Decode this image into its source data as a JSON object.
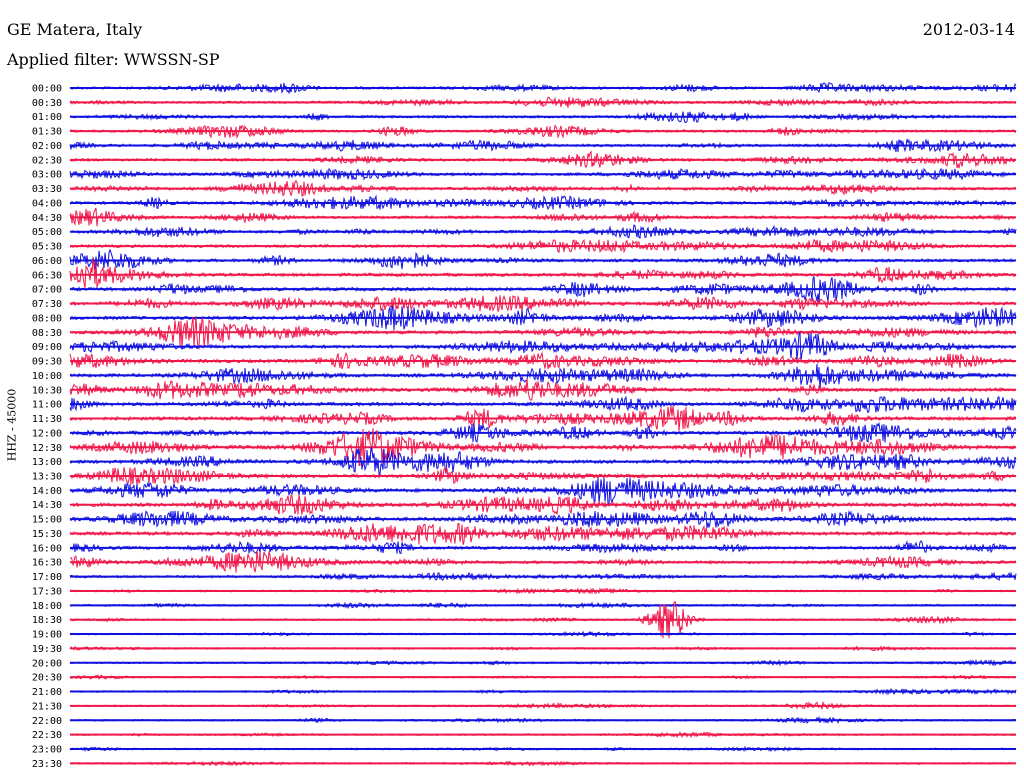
{
  "header": {
    "station": "GE Matera, Italy",
    "date": "2012-03-14",
    "filter": "Applied filter: WWSSN-SP"
  },
  "channel_label": "HHZ - 45000",
  "colors": {
    "trace_a": "#1010e0",
    "trace_b": "#f0174a"
  },
  "chart_data": {
    "type": "line",
    "title": "GE Matera, Italy",
    "subtitle": "Applied filter: WWSSN-SP",
    "ylabel": "HHZ - 45000",
    "rows": [
      {
        "time": "00:00",
        "activity": 0.55
      },
      {
        "time": "00:30",
        "activity": 0.45
      },
      {
        "time": "01:00",
        "activity": 0.5
      },
      {
        "time": "01:30",
        "activity": 0.5
      },
      {
        "time": "02:00",
        "activity": 0.6
      },
      {
        "time": "02:30",
        "activity": 0.6
      },
      {
        "time": "03:00",
        "activity": 0.6
      },
      {
        "time": "03:30",
        "activity": 0.65
      },
      {
        "time": "04:00",
        "activity": 0.65
      },
      {
        "time": "04:30",
        "activity": 0.6
      },
      {
        "time": "05:00",
        "activity": 0.65
      },
      {
        "time": "05:30",
        "activity": 0.65
      },
      {
        "time": "06:00",
        "activity": 0.7
      },
      {
        "time": "06:30",
        "activity": 0.8
      },
      {
        "time": "07:00",
        "activity": 0.85
      },
      {
        "time": "07:30",
        "activity": 0.85
      },
      {
        "time": "08:00",
        "activity": 0.85
      },
      {
        "time": "08:30",
        "activity": 0.85
      },
      {
        "time": "09:00",
        "activity": 0.85
      },
      {
        "time": "09:30",
        "activity": 0.85
      },
      {
        "time": "10:00",
        "activity": 0.85
      },
      {
        "time": "10:30",
        "activity": 0.85
      },
      {
        "time": "11:00",
        "activity": 0.9
      },
      {
        "time": "11:30",
        "activity": 0.85
      },
      {
        "time": "12:00",
        "activity": 0.85
      },
      {
        "time": "12:30",
        "activity": 0.9
      },
      {
        "time": "13:00",
        "activity": 0.9
      },
      {
        "time": "13:30",
        "activity": 0.9
      },
      {
        "time": "14:00",
        "activity": 0.9
      },
      {
        "time": "14:30",
        "activity": 0.9
      },
      {
        "time": "15:00",
        "activity": 0.9
      },
      {
        "time": "15:30",
        "activity": 0.85
      },
      {
        "time": "16:00",
        "activity": 0.7
      },
      {
        "time": "16:30",
        "activity": 0.65
      },
      {
        "time": "17:00",
        "activity": 0.45
      },
      {
        "time": "17:30",
        "activity": 0.25
      },
      {
        "time": "18:00",
        "activity": 0.25
      },
      {
        "time": "18:30",
        "activity": 0.25
      },
      {
        "time": "19:00",
        "activity": 0.2
      },
      {
        "time": "19:30",
        "activity": 0.2
      },
      {
        "time": "20:00",
        "activity": 0.2
      },
      {
        "time": "20:30",
        "activity": 0.2
      },
      {
        "time": "21:00",
        "activity": 0.2
      },
      {
        "time": "21:30",
        "activity": 0.2
      },
      {
        "time": "22:00",
        "activity": 0.2
      },
      {
        "time": "22:30",
        "activity": 0.2
      },
      {
        "time": "23:00",
        "activity": 0.2
      },
      {
        "time": "23:30",
        "activity": 0.2
      }
    ],
    "events": [
      {
        "time": "18:30",
        "minute": 19,
        "amplitude": 1.4
      }
    ]
  }
}
